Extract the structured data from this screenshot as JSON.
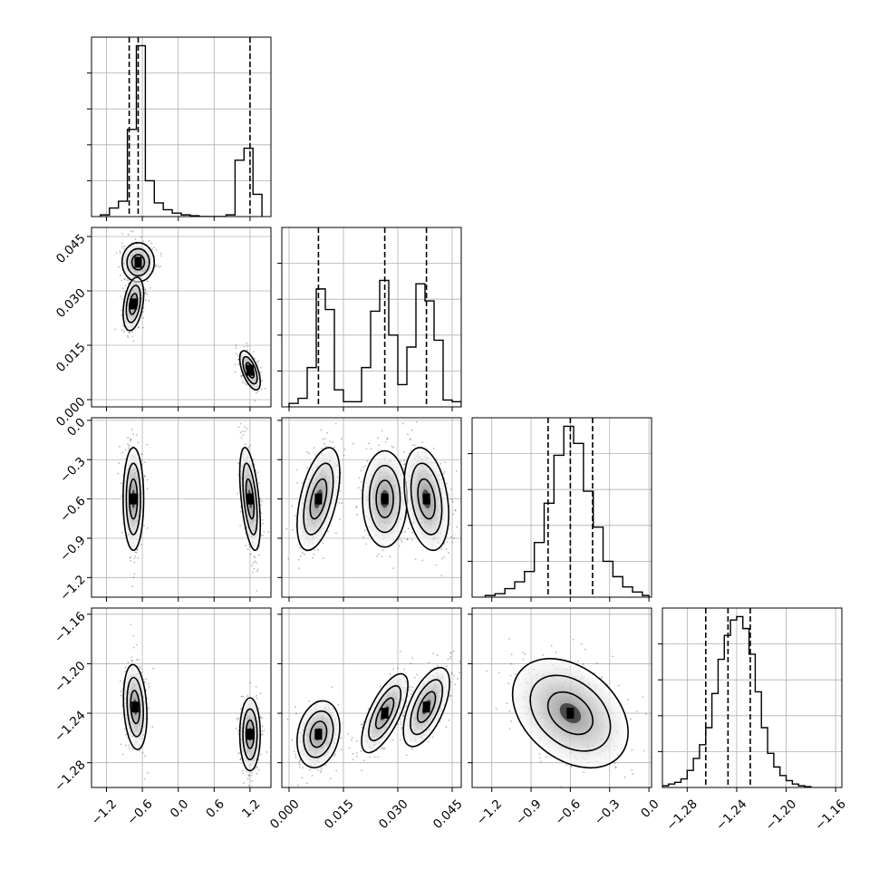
{
  "chart_data": {
    "type": "corner",
    "title": "",
    "variables": 4,
    "grid": true,
    "dashed_lines": "16th, 50th and 84th percentiles on each diagonal histogram",
    "axes": [
      {
        "range": [
          -1.45,
          1.55
        ],
        "ticks": [
          -1.2,
          -0.6,
          0.0,
          0.6,
          1.2
        ],
        "tick_labels": [
          "−1.2",
          "−0.6",
          "0.0",
          "0.6",
          "1.2"
        ],
        "quantiles": [
          -0.82,
          -0.67,
          1.2
        ],
        "hist": {
          "edges": [
            -1.3,
            -1.15,
            -1.0,
            -0.85,
            -0.7,
            -0.55,
            -0.4,
            -0.25,
            -0.1,
            0.05,
            0.2,
            0.35,
            0.5,
            0.65,
            0.8,
            0.95,
            1.1,
            1.25,
            1.4
          ],
          "counts": [
            0.01,
            0.05,
            0.09,
            0.51,
            1.0,
            0.21,
            0.08,
            0.04,
            0.02,
            0.01,
            0.005,
            0.0,
            0.0,
            0.0,
            0.01,
            0.33,
            0.4,
            0.13
          ]
        }
      },
      {
        "range": [
          -0.002,
          0.0475
        ],
        "ticks": [
          0.0,
          0.015,
          0.03,
          0.045
        ],
        "tick_labels": [
          "0.000",
          "0.015",
          "0.030",
          "0.045"
        ],
        "quantiles": [
          0.0081,
          0.0264,
          0.0379
        ],
        "hist": {
          "edges": [
            0.0,
            0.0025,
            0.005,
            0.0075,
            0.01,
            0.0125,
            0.015,
            0.0175,
            0.02,
            0.0225,
            0.025,
            0.0275,
            0.03,
            0.0325,
            0.035,
            0.0375,
            0.04,
            0.0425,
            0.045,
            0.0475
          ],
          "counts": [
            0.02,
            0.05,
            0.23,
            0.69,
            0.57,
            0.1,
            0.03,
            0.03,
            0.23,
            0.56,
            0.74,
            0.42,
            0.13,
            0.35,
            0.72,
            0.62,
            0.39,
            0.04,
            0.03
          ]
        }
      },
      {
        "range": [
          -1.35,
          0.02
        ],
        "ticks": [
          -1.2,
          -0.9,
          -0.6,
          -0.3,
          0.0
        ],
        "tick_labels": [
          "−1.2",
          "−0.9",
          "−0.6",
          "−0.3",
          "0.0"
        ],
        "quantiles": [
          -0.77,
          -0.6,
          -0.43
        ],
        "hist": {
          "edges": [
            -1.25,
            -1.175,
            -1.1,
            -1.025,
            -0.95,
            -0.875,
            -0.8,
            -0.725,
            -0.65,
            -0.575,
            -0.5,
            -0.425,
            -0.35,
            -0.275,
            -0.2,
            -0.125,
            -0.05,
            0.0
          ],
          "counts": [
            0.01,
            0.02,
            0.05,
            0.09,
            0.15,
            0.32,
            0.55,
            0.83,
            1.0,
            0.9,
            0.62,
            0.41,
            0.21,
            0.12,
            0.06,
            0.03,
            0.01
          ]
        }
      },
      {
        "range": [
          -1.3,
          -1.155
        ],
        "ticks": [
          -1.28,
          -1.24,
          -1.2,
          -1.16
        ],
        "tick_labels": [
          "−1.28",
          "−1.24",
          "−1.20",
          "−1.16"
        ],
        "quantiles": [
          -1.265,
          -1.247,
          -1.229
        ],
        "hist": {
          "edges": [
            -1.3,
            -1.295,
            -1.29,
            -1.285,
            -1.28,
            -1.275,
            -1.27,
            -1.265,
            -1.26,
            -1.255,
            -1.25,
            -1.245,
            -1.24,
            -1.235,
            -1.23,
            -1.225,
            -1.22,
            -1.215,
            -1.21,
            -1.205,
            -1.2,
            -1.195,
            -1.19,
            -1.185,
            -1.18
          ],
          "counts": [
            0.01,
            0.02,
            0.03,
            0.05,
            0.1,
            0.17,
            0.25,
            0.35,
            0.55,
            0.75,
            0.89,
            0.98,
            1.0,
            0.93,
            0.78,
            0.56,
            0.35,
            0.2,
            0.12,
            0.07,
            0.04,
            0.02,
            0.01,
            0.005
          ]
        }
      }
    ],
    "joint": [
      {
        "row": 1,
        "col": 0,
        "modes": [
          {
            "x": -0.67,
            "y": 0.0379,
            "sx": 0.11,
            "sy": 0.0022,
            "rho": 0.0
          },
          {
            "x": -0.75,
            "y": 0.0264,
            "sx": 0.07,
            "sy": 0.003,
            "rho": 0.35
          },
          {
            "x": 1.2,
            "y": 0.0081,
            "sx": 0.07,
            "sy": 0.0022,
            "rho": -0.6
          }
        ]
      },
      {
        "row": 2,
        "col": 0,
        "modes": [
          {
            "x": -0.75,
            "y": -0.6,
            "sx": 0.07,
            "sy": 0.16,
            "rho": 0.0
          },
          {
            "x": 1.2,
            "y": -0.6,
            "sx": 0.07,
            "sy": 0.16,
            "rho": -0.5
          }
        ]
      },
      {
        "row": 2,
        "col": 1,
        "modes": [
          {
            "x": 0.0081,
            "y": -0.6,
            "sx": 0.0024,
            "sy": 0.16,
            "rho": 0.5
          },
          {
            "x": 0.0264,
            "y": -0.6,
            "sx": 0.0025,
            "sy": 0.15,
            "rho": 0.0
          },
          {
            "x": 0.0379,
            "y": -0.6,
            "sx": 0.0025,
            "sy": 0.16,
            "rho": -0.3
          }
        ]
      },
      {
        "row": 3,
        "col": 0,
        "modes": [
          {
            "x": -0.72,
            "y": -1.235,
            "sx": 0.08,
            "sy": 0.014,
            "rho": -0.2
          },
          {
            "x": 1.2,
            "y": -1.257,
            "sx": 0.07,
            "sy": 0.012,
            "rho": 0.0
          }
        ]
      },
      {
        "row": 3,
        "col": 1,
        "modes": [
          {
            "x": 0.0081,
            "y": -1.257,
            "sx": 0.0024,
            "sy": 0.011,
            "rho": 0.2
          },
          {
            "x": 0.0264,
            "y": -1.24,
            "sx": 0.0026,
            "sy": 0.013,
            "rho": 0.7
          },
          {
            "x": 0.0379,
            "y": -1.235,
            "sx": 0.0026,
            "sy": 0.013,
            "rho": 0.6
          }
        ]
      },
      {
        "row": 3,
        "col": 2,
        "modes": [
          {
            "x": -0.6,
            "y": -1.24,
            "sx": 0.18,
            "sy": 0.018,
            "rho": -0.35
          }
        ]
      }
    ]
  }
}
